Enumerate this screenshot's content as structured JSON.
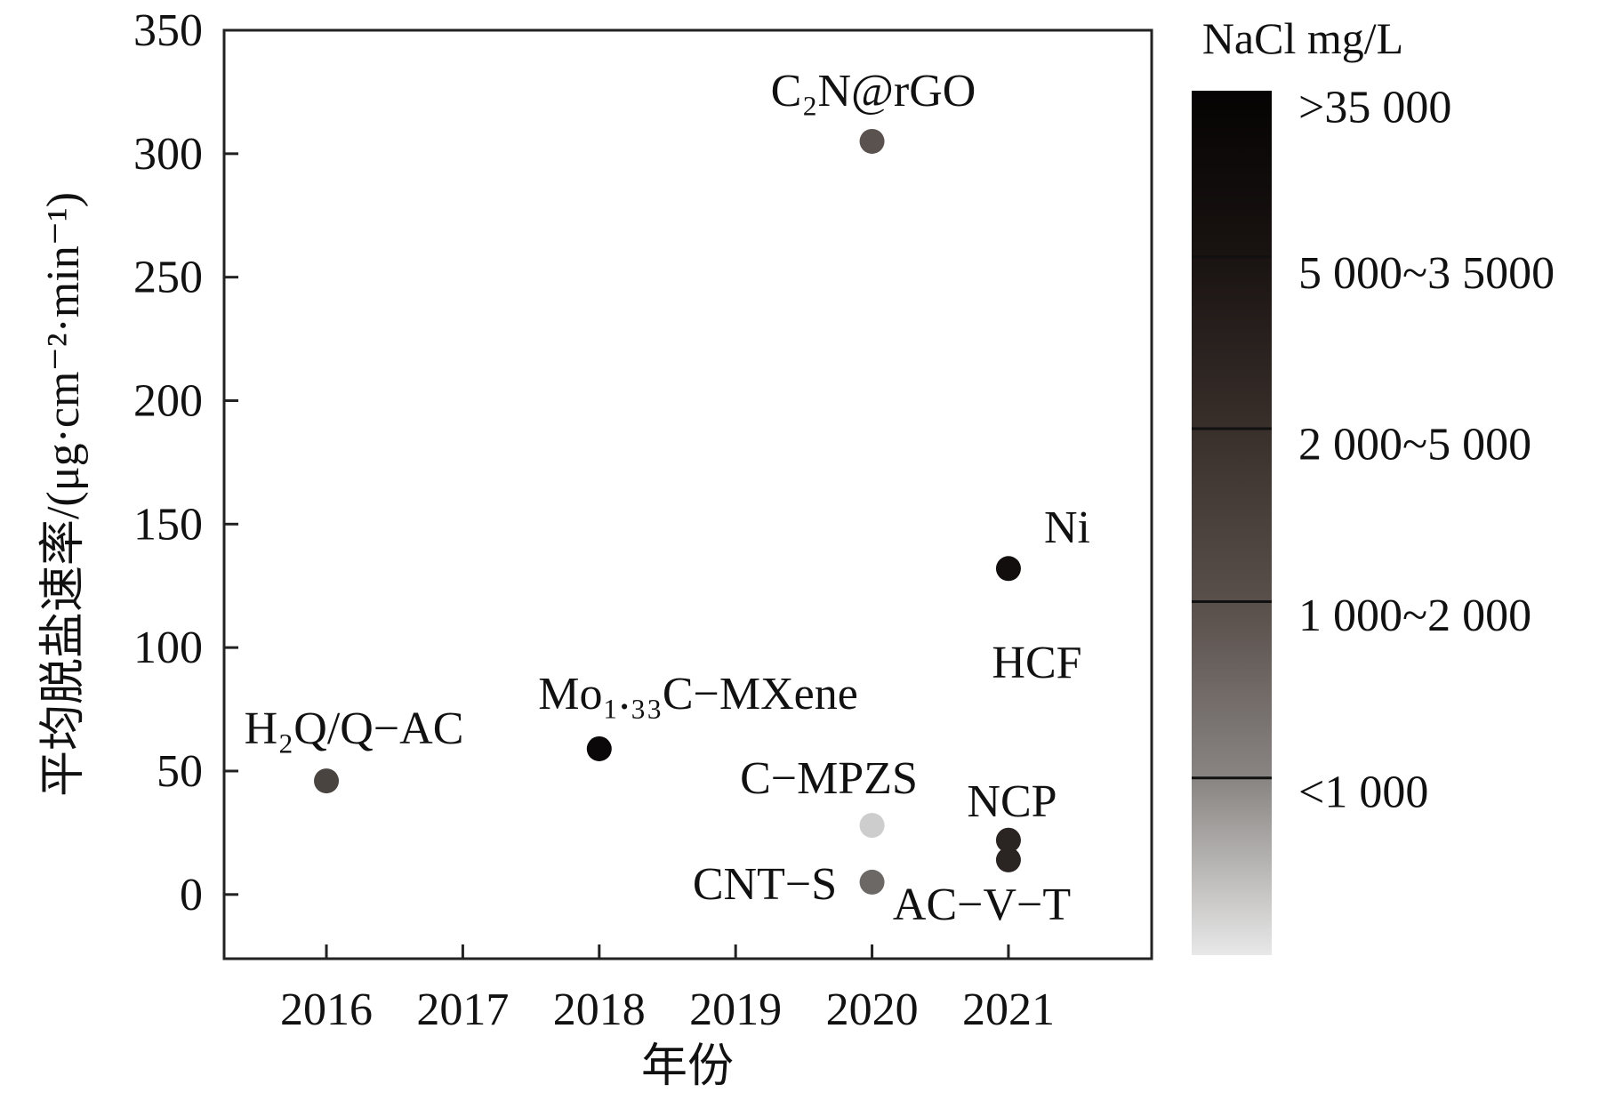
{
  "chart_data": {
    "type": "scatter",
    "xlabel": "年份",
    "ylabel": "平均脱盐速率/(μg·cm⁻²·min⁻¹)",
    "xlim": [
      2015.25,
      2022.05
    ],
    "ylim": [
      -26,
      350
    ],
    "x_ticks": [
      2016,
      2017,
      2018,
      2019,
      2020,
      2021
    ],
    "y_ticks": [
      0,
      50,
      100,
      150,
      200,
      250,
      300,
      350
    ],
    "grid": false,
    "points": [
      {
        "label": "H₂Q/Q−AC",
        "x": 2016,
        "y": 46,
        "color": "#4a4440"
      },
      {
        "label": "Mo₁.₃₃C−MXene",
        "x": 2018,
        "y": 59,
        "color": "#0a0808"
      },
      {
        "label": "C₂N@rGO",
        "x": 2020,
        "y": 305,
        "color": "#5a524e"
      },
      {
        "label": "C−MPZS",
        "x": 2020,
        "y": 28,
        "color": "#cdcdcd"
      },
      {
        "label": "CNT−S",
        "x": 2020,
        "y": 5,
        "color": "#6c6866"
      },
      {
        "label": "Ni",
        "x": 2021,
        "y": 132,
        "color": "#120e0e"
      },
      {
        "label": "HCF",
        "x": 2021,
        "y": null,
        "color": null
      },
      {
        "label": "NCP",
        "x": 2021,
        "y": 22,
        "color": "#2a2422"
      },
      {
        "label": "AC−V−T",
        "x": 2021,
        "y": 14,
        "color": "#2a2422"
      }
    ],
    "colorbar": {
      "title": "NaCl mg/L",
      "labels": [
        ">35 000",
        "5 000~3 5000",
        "2 000~5 000",
        "1 000~2 000",
        "<1 000"
      ],
      "colors": [
        "#050303",
        "#1a1412",
        "#3a302c",
        "#5a504c",
        "#8a8684",
        "#e8e8e8"
      ]
    }
  }
}
